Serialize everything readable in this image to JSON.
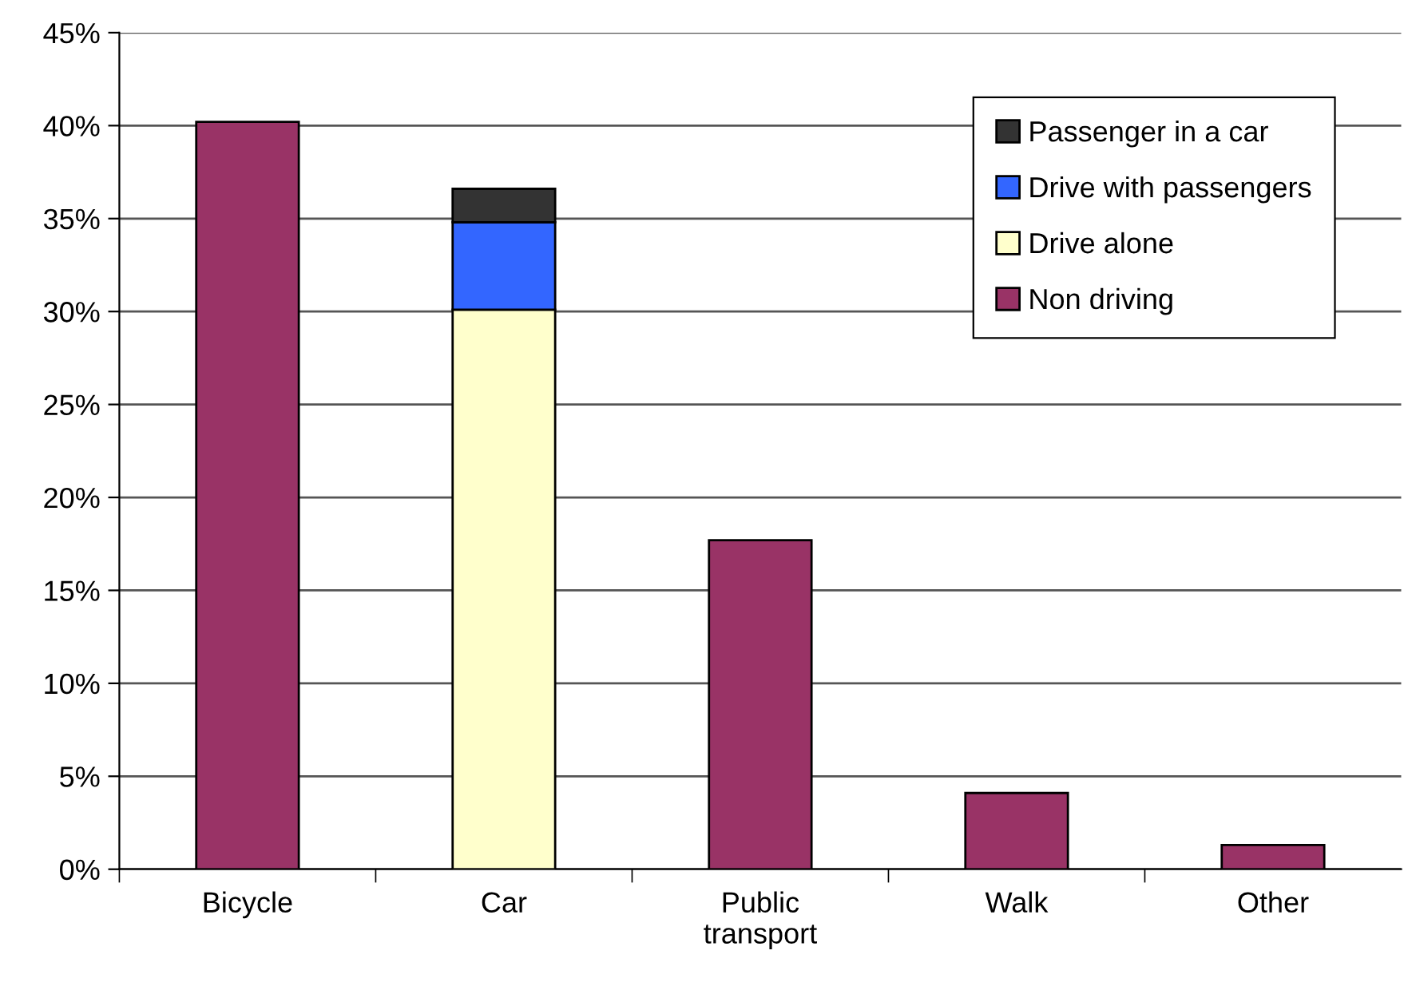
{
  "chart_data": {
    "type": "bar",
    "stacked": true,
    "categories": [
      "Bicycle",
      "Car",
      "Public\ntransport",
      "Walk",
      "Other"
    ],
    "series": [
      {
        "name": "Non driving",
        "color": "#993366",
        "values": [
          40.2,
          null,
          17.7,
          4.1,
          1.3
        ]
      },
      {
        "name": "Drive alone",
        "color": "#ffffcc",
        "values": [
          null,
          30.1,
          null,
          null,
          null
        ]
      },
      {
        "name": "Drive with passengers",
        "color": "#3366ff",
        "values": [
          null,
          4.7,
          null,
          null,
          null
        ]
      },
      {
        "name": "Passenger in a car",
        "color": "#333333",
        "values": [
          null,
          1.8,
          null,
          null,
          null
        ]
      }
    ],
    "ylim": [
      0,
      45
    ],
    "yticks": [
      {
        "value": 0,
        "label": "0%"
      },
      {
        "value": 5,
        "label": "5%"
      },
      {
        "value": 10,
        "label": "10%"
      },
      {
        "value": 15,
        "label": "15%"
      },
      {
        "value": 20,
        "label": "20%"
      },
      {
        "value": 25,
        "label": "25%"
      },
      {
        "value": 30,
        "label": "30%"
      },
      {
        "value": 35,
        "label": "35%"
      },
      {
        "value": 40,
        "label": "40%"
      },
      {
        "value": 45,
        "label": "45%"
      }
    ],
    "grid": "y",
    "legend": "top right"
  }
}
